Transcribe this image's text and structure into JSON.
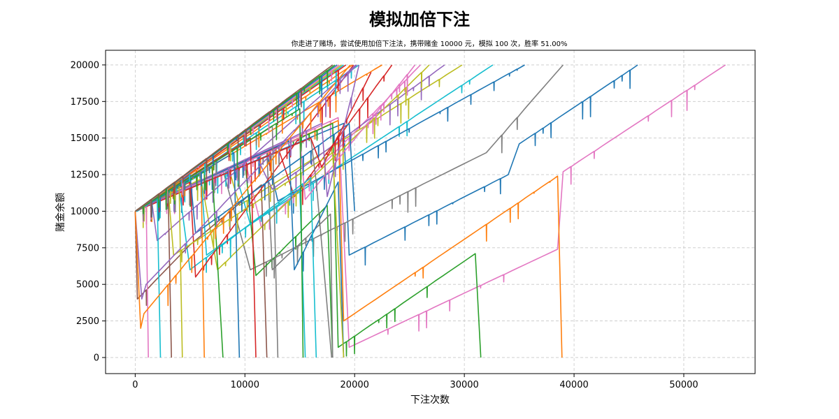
{
  "chart_data": {
    "type": "line",
    "title": "模拟加倍下注",
    "subtitle": "你走进了赌场，尝试使用加倍下注法，携带赌金 10000 元，模拟 100 次，胜率 51.00%",
    "xlabel": "下注次数",
    "ylabel": "赌金余额",
    "xlim": [
      -2700,
      56500
    ],
    "ylim": [
      -1100,
      21000
    ],
    "xticks": [
      0,
      10000,
      20000,
      30000,
      40000,
      50000
    ],
    "yticks": [
      0,
      2500,
      5000,
      7500,
      10000,
      12500,
      15000,
      17500,
      20000
    ],
    "grid": true,
    "colors": [
      "#1f77b4",
      "#ff7f0e",
      "#2ca02c",
      "#d62728",
      "#9467bd",
      "#8c564b",
      "#e377c2",
      "#7f7f7f",
      "#bcbd22",
      "#17becf"
    ],
    "series": [
      {
        "color_index": 6,
        "x": [
          0,
          18500,
          19500,
          38500,
          39000,
          53800
        ],
        "y": [
          10000,
          16400,
          700,
          7400,
          12700,
          20000
        ]
      },
      {
        "color_index": 0,
        "x": [
          0,
          19000,
          19500,
          34000,
          35000,
          45800
        ],
        "y": [
          10000,
          16000,
          7000,
          12500,
          14600,
          20000
        ]
      },
      {
        "color_index": 1,
        "x": [
          0,
          18500,
          19000,
          38500,
          38900
        ],
        "y": [
          10000,
          16200,
          2500,
          12400,
          0
        ]
      },
      {
        "color_index": 2,
        "x": [
          0,
          18000,
          18500,
          31000,
          31500
        ],
        "y": [
          10000,
          16000,
          700,
          7100,
          0
        ]
      },
      {
        "color_index": 7,
        "x": [
          0,
          8000,
          10500,
          32000,
          39000
        ],
        "y": [
          10000,
          12800,
          6000,
          14000,
          20000
        ]
      },
      {
        "color_index": 8,
        "x": [
          0,
          8500,
          9500,
          29800
        ],
        "y": [
          10000,
          13000,
          10400,
          20000
        ]
      },
      {
        "color_index": 9,
        "x": [
          0,
          9000,
          10500,
          32600
        ],
        "y": [
          10000,
          13000,
          9100,
          20000
        ]
      },
      {
        "color_index": 0,
        "x": [
          0,
          12000,
          13000,
          35500
        ],
        "y": [
          10000,
          14000,
          10700,
          20000
        ]
      },
      {
        "color_index": 6,
        "x": [
          0,
          10000,
          11500,
          26000
        ],
        "y": [
          10000,
          13500,
          8900,
          20000
        ]
      },
      {
        "color_index": 4,
        "x": [
          0,
          11000,
          12500,
          28200
        ],
        "y": [
          10000,
          13800,
          11500,
          20000
        ]
      },
      {
        "color_index": 3,
        "x": [
          0,
          13000,
          14500,
          23400
        ],
        "y": [
          10000,
          14400,
          11000,
          20000
        ]
      },
      {
        "color_index": 1,
        "x": [
          0,
          22500
        ],
        "y": [
          10000,
          20000
        ]
      },
      {
        "color_index": 8,
        "x": [
          0,
          6000,
          7500,
          26800
        ],
        "y": [
          10000,
          12200,
          6000,
          20000
        ]
      },
      {
        "color_index": 2,
        "x": [
          0,
          10000,
          11000,
          17500,
          18000
        ],
        "y": [
          10000,
          13500,
          5600,
          10400,
          0
        ]
      },
      {
        "color_index": 7,
        "x": [
          0,
          12000,
          12500,
          17800,
          18000
        ],
        "y": [
          10000,
          14000,
          6000,
          9800,
          0
        ]
      },
      {
        "color_index": 0,
        "x": [
          0,
          14000,
          14500,
          18500,
          19000
        ],
        "y": [
          10000,
          14800,
          6000,
          12000,
          0
        ]
      },
      {
        "color_index": 9,
        "x": [
          0,
          4000,
          5000,
          16000,
          16500
        ],
        "y": [
          10000,
          11600,
          6000,
          12300,
          0
        ]
      },
      {
        "color_index": 5,
        "x": [
          0,
          200,
          5000,
          11500,
          12000
        ],
        "y": [
          10000,
          4000,
          7700,
          11800,
          0
        ]
      },
      {
        "color_index": 3,
        "x": [
          0,
          5000,
          5500,
          19900
        ],
        "y": [
          10000,
          12000,
          5500,
          20000
        ]
      },
      {
        "color_index": 9,
        "x": [
          0,
          200,
          20400
        ],
        "y": [
          10000,
          10000,
          20000
        ]
      },
      {
        "color_index": 6,
        "x": [
          0,
          15000,
          15500,
          25500
        ],
        "y": [
          10000,
          15000,
          10800,
          20000
        ]
      },
      {
        "color_index": 4,
        "x": [
          0,
          1500,
          2000,
          20100
        ],
        "y": [
          10000,
          10700,
          8000,
          20000
        ]
      },
      {
        "color_index": 1,
        "x": [
          0,
          2000,
          19800
        ],
        "y": [
          10000,
          11000,
          20000
        ]
      },
      {
        "color_index": 8,
        "x": [
          0,
          3000,
          3500,
          18000,
          19000
        ],
        "y": [
          10000,
          11500,
          7000,
          14000,
          0
        ]
      },
      {
        "color_index": 9,
        "x": [
          0,
          6000,
          6500,
          15000,
          15500
        ],
        "y": [
          10000,
          12500,
          7000,
          11500,
          0
        ]
      },
      {
        "color_index": 0,
        "x": [
          0,
          5000,
          5500,
          19500,
          20000
        ],
        "y": [
          10000,
          12500,
          8500,
          16000,
          10000
        ]
      },
      {
        "color_index": 7,
        "x": [
          0,
          16000,
          16500,
          17900
        ],
        "y": [
          10000,
          15000,
          12000,
          0
        ]
      },
      {
        "color_index": 3,
        "x": [
          0,
          16000,
          17000,
          21500
        ],
        "y": [
          10000,
          15000,
          13000,
          19500
        ]
      },
      {
        "color_index": 4,
        "x": [
          0,
          17000,
          17500,
          20400
        ],
        "y": [
          10000,
          16000,
          11000,
          20000
        ]
      },
      {
        "color_index": 2,
        "x": [
          0,
          7000,
          7500,
          8000
        ],
        "y": [
          10000,
          13000,
          6500,
          0
        ]
      },
      {
        "color_index": 1,
        "x": [
          0,
          6000,
          6300
        ],
        "y": [
          10000,
          12800,
          0
        ]
      },
      {
        "color_index": 5,
        "x": [
          0,
          3000,
          3300
        ],
        "y": [
          10000,
          11500,
          0
        ]
      },
      {
        "color_index": 6,
        "x": [
          0,
          1000,
          1200
        ],
        "y": [
          10000,
          10500,
          0
        ]
      },
      {
        "color_index": 9,
        "x": [
          0,
          2000,
          2300
        ],
        "y": [
          10000,
          11000,
          0
        ]
      },
      {
        "color_index": 8,
        "x": [
          0,
          4000,
          4300
        ],
        "y": [
          10000,
          12000,
          0
        ]
      },
      {
        "color_index": 0,
        "x": [
          0,
          9000,
          9500
        ],
        "y": [
          10000,
          14000,
          0
        ]
      },
      {
        "color_index": 3,
        "x": [
          0,
          10500,
          11000
        ],
        "y": [
          10000,
          15000,
          0
        ]
      },
      {
        "color_index": 7,
        "x": [
          0,
          12500,
          13000
        ],
        "y": [
          10000,
          15800,
          0
        ]
      },
      {
        "color_index": 2,
        "x": [
          0,
          15000,
          15300
        ],
        "y": [
          10000,
          17000,
          0
        ]
      },
      {
        "color_index": 4,
        "x": [
          0,
          600,
          1000,
          20200
        ],
        "y": [
          10000,
          4000,
          5000,
          20000
        ]
      },
      {
        "color_index": 1,
        "x": [
          0,
          500,
          800,
          19600
        ],
        "y": [
          10000,
          2000,
          3000,
          20000
        ]
      },
      {
        "color_index": 9,
        "x": [
          0,
          19000
        ],
        "y": [
          10000,
          20000
        ]
      },
      {
        "color_index": 3,
        "x": [
          0,
          19200
        ],
        "y": [
          10000,
          20000
        ]
      },
      {
        "color_index": 8,
        "x": [
          0,
          18800
        ],
        "y": [
          10000,
          20000
        ]
      },
      {
        "color_index": 6,
        "x": [
          0,
          18600
        ],
        "y": [
          10000,
          20000
        ]
      },
      {
        "color_index": 0,
        "x": [
          0,
          18400
        ],
        "y": [
          10000,
          20000
        ]
      },
      {
        "color_index": 2,
        "x": [
          0,
          18200
        ],
        "y": [
          10000,
          20000
        ]
      },
      {
        "color_index": 5,
        "x": [
          0,
          18000
        ],
        "y": [
          10000,
          20000
        ]
      }
    ]
  }
}
